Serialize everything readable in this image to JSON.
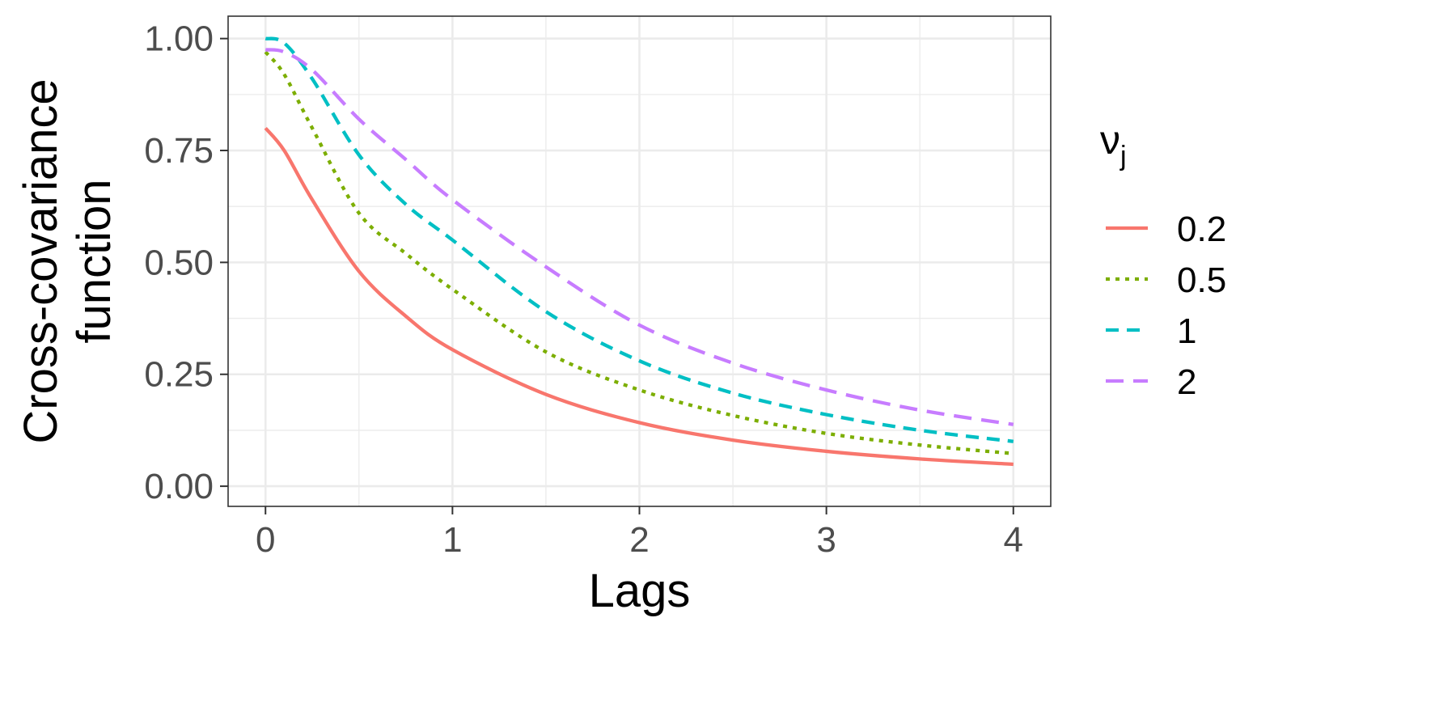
{
  "chart_data": {
    "type": "line",
    "xlabel": "Lags",
    "ylabel_line1": "Cross-covariance",
    "ylabel_line2": "function",
    "xlim": [
      -0.2,
      4.2
    ],
    "ylim": [
      -0.045,
      1.05
    ],
    "x_ticks": [
      0,
      1,
      2,
      3,
      4
    ],
    "x_tick_labels": [
      "0",
      "1",
      "2",
      "3",
      "4"
    ],
    "y_ticks": [
      0,
      0.25,
      0.5,
      0.75,
      1.0
    ],
    "y_tick_labels": [
      "0.00",
      "0.25",
      "0.50",
      "0.75",
      "1.00"
    ],
    "grid": true,
    "legend": {
      "title_main": "ν",
      "title_sub": "j",
      "position": "right"
    },
    "x": [
      0,
      0.1,
      0.25,
      0.5,
      0.75,
      1.0,
      1.5,
      2.0,
      2.5,
      3.0,
      3.5,
      4.0
    ],
    "series": [
      {
        "name": "0.2",
        "color": "#F8766D",
        "dash": "solid",
        "values": [
          0.8,
          0.75,
          0.64,
          0.48,
          0.38,
          0.305,
          0.205,
          0.142,
          0.103,
          0.078,
          0.061,
          0.049
        ]
      },
      {
        "name": "0.5",
        "color": "#7CAE00",
        "dash": "dotted",
        "values": [
          0.97,
          0.92,
          0.8,
          0.61,
          0.52,
          0.44,
          0.3,
          0.215,
          0.158,
          0.118,
          0.092,
          0.073
        ]
      },
      {
        "name": "1",
        "color": "#00BFC4",
        "dash": "dashed",
        "values": [
          1.0,
          0.99,
          0.91,
          0.74,
          0.63,
          0.55,
          0.39,
          0.28,
          0.208,
          0.16,
          0.125,
          0.1
        ]
      },
      {
        "name": "2",
        "color": "#C77CFF",
        "dash": "longdash",
        "values": [
          0.975,
          0.97,
          0.93,
          0.82,
          0.73,
          0.64,
          0.49,
          0.36,
          0.275,
          0.215,
          0.17,
          0.138
        ]
      }
    ]
  }
}
